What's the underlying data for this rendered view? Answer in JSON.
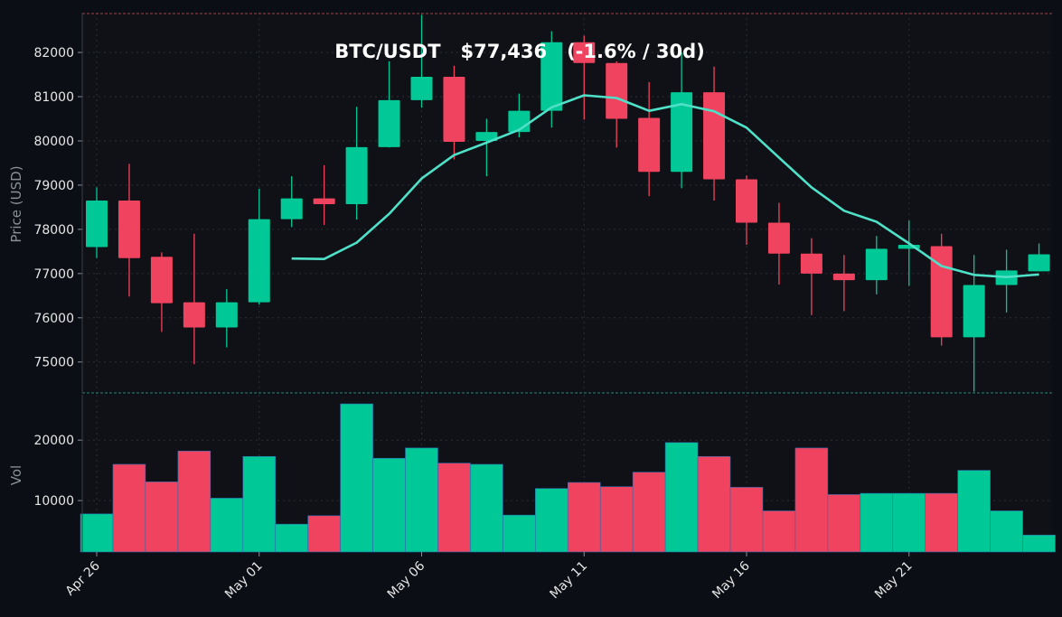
{
  "chart_data": {
    "type": "candlestick",
    "title": "BTC/USDT   $77,436   (-1.6% / 30d)",
    "ylabel": "Price (USD)",
    "volume_label": "Vol",
    "price_ylim": [
      74300,
      82900
    ],
    "volume_ylim": [
      1500,
      27500
    ],
    "price_ticks": [
      75000,
      76000,
      77000,
      78000,
      79000,
      80000,
      81000,
      82000
    ],
    "volume_ticks": [
      10000,
      20000
    ],
    "x_ticks": [
      {
        "index": 0,
        "label": "Apr 26"
      },
      {
        "index": 5,
        "label": "May 01"
      },
      {
        "index": 10,
        "label": "May 06"
      },
      {
        "index": 15,
        "label": "May 11"
      },
      {
        "index": 20,
        "label": "May 16"
      },
      {
        "index": 25,
        "label": "May 21"
      }
    ],
    "colors": {
      "up": "#00c896",
      "down": "#f0435f",
      "ma": "#4fe0c8",
      "background": "#0f1116",
      "page": "#0b0e14",
      "grid": "#2a2f38",
      "text": "#e6e6e6",
      "muted": "#8a8f98"
    },
    "grid": true,
    "candles": [
      {
        "o": 77600,
        "h": 78950,
        "l": 77350,
        "c": 78650
      },
      {
        "o": 78650,
        "h": 79480,
        "l": 76480,
        "c": 77350
      },
      {
        "o": 77380,
        "h": 77480,
        "l": 75680,
        "c": 76330
      },
      {
        "o": 76350,
        "h": 77900,
        "l": 74950,
        "c": 75780
      },
      {
        "o": 75780,
        "h": 76650,
        "l": 75330,
        "c": 76350
      },
      {
        "o": 76350,
        "h": 78920,
        "l": 76300,
        "c": 78230
      },
      {
        "o": 78230,
        "h": 79200,
        "l": 78050,
        "c": 78700
      },
      {
        "o": 78700,
        "h": 79450,
        "l": 78100,
        "c": 78570
      },
      {
        "o": 78570,
        "h": 80770,
        "l": 78220,
        "c": 79860
      },
      {
        "o": 79860,
        "h": 81800,
        "l": 79850,
        "c": 80920
      },
      {
        "o": 80920,
        "h": 82850,
        "l": 80750,
        "c": 81450
      },
      {
        "o": 81450,
        "h": 81700,
        "l": 79580,
        "c": 79980
      },
      {
        "o": 80000,
        "h": 80500,
        "l": 79200,
        "c": 80200
      },
      {
        "o": 80200,
        "h": 81070,
        "l": 80080,
        "c": 80680
      },
      {
        "o": 80680,
        "h": 82480,
        "l": 80300,
        "c": 82230
      },
      {
        "o": 82230,
        "h": 82380,
        "l": 80480,
        "c": 81760
      },
      {
        "o": 81760,
        "h": 81800,
        "l": 79850,
        "c": 80500
      },
      {
        "o": 80520,
        "h": 81330,
        "l": 78750,
        "c": 79300
      },
      {
        "o": 79300,
        "h": 82000,
        "l": 78930,
        "c": 81100
      },
      {
        "o": 81100,
        "h": 81680,
        "l": 78650,
        "c": 79130
      },
      {
        "o": 79130,
        "h": 79220,
        "l": 77650,
        "c": 78150
      },
      {
        "o": 78150,
        "h": 78600,
        "l": 76750,
        "c": 77450
      },
      {
        "o": 77450,
        "h": 77800,
        "l": 76060,
        "c": 77000
      },
      {
        "o": 77000,
        "h": 77420,
        "l": 76150,
        "c": 76850
      },
      {
        "o": 76850,
        "h": 77850,
        "l": 76530,
        "c": 77560
      },
      {
        "o": 77560,
        "h": 78200,
        "l": 76720,
        "c": 77650
      },
      {
        "o": 77620,
        "h": 77900,
        "l": 75370,
        "c": 75560
      },
      {
        "o": 75560,
        "h": 77420,
        "l": 74330,
        "c": 76740
      },
      {
        "o": 76740,
        "h": 77540,
        "l": 76120,
        "c": 77070
      },
      {
        "o": 77050,
        "h": 77680,
        "l": 77050,
        "c": 77436
      }
    ],
    "volumes": [
      7800,
      16000,
      13100,
      18200,
      10400,
      17300,
      6100,
      7500,
      26000,
      17000,
      18700,
      16200,
      16000,
      7600,
      12000,
      13000,
      12300,
      14700,
      19600,
      17300,
      12200,
      8300,
      18700,
      11000,
      11200,
      11200,
      11200,
      15000,
      8300,
      4300
    ],
    "ma_start_index": 6,
    "ma": [
      77340,
      77330,
      77700,
      78350,
      79150,
      79680,
      79960,
      80250,
      80760,
      81030,
      80970,
      80680,
      80830,
      80670,
      80300,
      79620,
      78950,
      78420,
      78170,
      77680,
      77170,
      76970,
      76920,
      76980
    ]
  }
}
